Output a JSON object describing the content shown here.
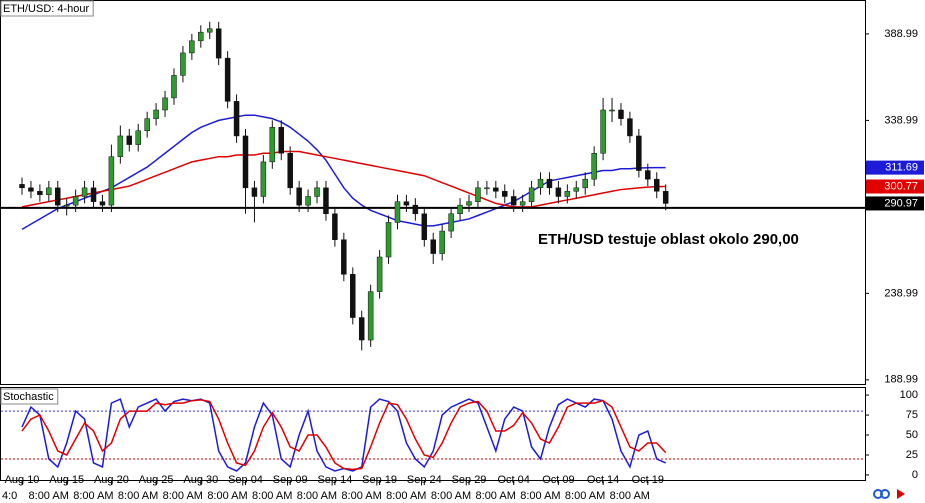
{
  "chart_data": [
    {
      "type": "candlestick",
      "title": "ETH/USD: 4-hour",
      "annotation": "ETH/USD testuje oblast okolo 290,00",
      "up_color": "#2f9a2f",
      "down_color": "#111111",
      "open": [
        302,
        300,
        298,
        296,
        300,
        290,
        290,
        295,
        300,
        292,
        290,
        318,
        330,
        325,
        333,
        340,
        345,
        352,
        365,
        378,
        385,
        390,
        392,
        375,
        350,
        330,
        300,
        295,
        315,
        335,
        320,
        300,
        290,
        295,
        300,
        285,
        270,
        250,
        225,
        212,
        240,
        260,
        280,
        292,
        290,
        285,
        270,
        262,
        275,
        285,
        290,
        292,
        300,
        300,
        298,
        295,
        290,
        292,
        300,
        305,
        300,
        295,
        298,
        300,
        305,
        320,
        345,
        345,
        340,
        330,
        310,
        305,
        298
      ],
      "high": [
        306,
        304,
        302,
        304,
        304,
        294,
        299,
        304,
        304,
        296,
        325,
        336,
        334,
        337,
        344,
        349,
        356,
        369,
        382,
        389,
        394,
        396,
        396,
        379,
        354,
        334,
        304,
        319,
        339,
        339,
        324,
        304,
        299,
        304,
        304,
        289,
        274,
        254,
        229,
        244,
        264,
        284,
        296,
        296,
        294,
        289,
        274,
        279,
        289,
        294,
        296,
        304,
        304,
        304,
        302,
        299,
        296,
        304,
        309,
        309,
        304,
        302,
        304,
        309,
        324,
        352,
        352,
        349,
        344,
        334,
        314,
        309,
        302
      ],
      "low": [
        296,
        294,
        292,
        292,
        286,
        284,
        286,
        291,
        288,
        286,
        286,
        314,
        321,
        321,
        329,
        336,
        341,
        348,
        361,
        374,
        381,
        386,
        371,
        346,
        326,
        285,
        280,
        291,
        311,
        316,
        296,
        286,
        286,
        291,
        281,
        266,
        246,
        221,
        206,
        208,
        236,
        256,
        276,
        286,
        281,
        266,
        256,
        258,
        271,
        281,
        286,
        288,
        296,
        294,
        291,
        286,
        286,
        288,
        296,
        296,
        291,
        291,
        294,
        296,
        301,
        316,
        338,
        336,
        326,
        306,
        301,
        294,
        287
      ],
      "close": [
        300,
        298,
        296,
        300,
        290,
        290,
        295,
        300,
        292,
        290,
        318,
        330,
        325,
        333,
        340,
        345,
        352,
        365,
        378,
        385,
        390,
        392,
        375,
        350,
        330,
        300,
        295,
        315,
        335,
        320,
        300,
        290,
        295,
        300,
        285,
        270,
        250,
        225,
        212,
        240,
        260,
        280,
        292,
        290,
        285,
        270,
        262,
        275,
        285,
        290,
        292,
        300,
        300,
        298,
        295,
        290,
        292,
        300,
        305,
        300,
        295,
        298,
        300,
        305,
        320,
        345,
        345,
        340,
        330,
        310,
        305,
        298,
        290.97
      ],
      "last_color": "#000000",
      "series": [
        {
          "color": "#1c1cd8",
          "values": [
            276,
            279,
            282,
            285,
            288,
            290,
            292,
            294,
            296,
            298,
            300,
            303,
            306,
            309,
            312,
            316,
            320,
            324,
            328,
            332,
            335,
            337,
            339,
            340,
            341,
            342,
            342,
            341,
            340,
            338,
            335,
            331,
            327,
            322,
            316,
            308,
            300,
            294,
            290,
            287,
            285,
            283,
            281,
            280,
            279,
            278,
            278,
            279,
            280,
            281,
            282,
            284,
            286,
            288,
            290,
            292,
            295,
            298,
            301,
            304,
            305,
            306,
            307,
            308,
            309,
            310,
            310,
            311,
            311,
            311.5,
            311.6,
            311.69,
            311.69
          ]
        },
        {
          "color": "#e00000",
          "values": [
            289,
            290,
            291,
            292,
            293,
            294,
            295,
            296,
            297,
            298,
            299,
            300,
            301,
            303,
            305,
            307,
            309,
            311,
            313,
            315,
            316,
            317,
            318,
            318,
            319,
            319,
            319,
            320,
            320,
            321,
            321,
            321,
            320,
            319,
            318,
            317,
            316,
            315,
            314,
            313,
            312,
            311,
            310,
            309,
            308,
            307,
            305,
            303,
            301,
            299,
            297,
            295,
            293,
            291,
            290,
            289,
            289,
            289,
            290,
            291,
            292,
            293,
            294,
            295,
            296,
            297,
            298,
            299,
            299.5,
            300,
            300.4,
            300.7,
            300.77
          ]
        }
      ],
      "hline": {
        "value": 288.4,
        "color": "#000000"
      },
      "ylim": [
        186,
        408.6
      ],
      "yticks": [
        388.99,
        338.99,
        238.99,
        188.99
      ]
    },
    {
      "type": "line",
      "title": "Stochastic",
      "categories": [
        "Aug 10",
        null,
        null,
        null,
        null,
        "Aug 15",
        null,
        null,
        null,
        null,
        "Aug 20",
        null,
        null,
        null,
        null,
        "Aug 25",
        null,
        null,
        null,
        null,
        "Aug 30",
        null,
        null,
        null,
        null,
        "Sep 04",
        null,
        null,
        null,
        null,
        "Sep 09",
        null,
        null,
        null,
        null,
        "Sep 14",
        null,
        null,
        null,
        null,
        "Sep 19",
        null,
        null,
        null,
        null,
        "Sep 24",
        null,
        null,
        null,
        null,
        "Sep 29",
        null,
        null,
        null,
        null,
        "Oct 04",
        null,
        null,
        null,
        null,
        "Oct 09",
        null,
        null,
        null,
        null,
        "Oct 14",
        null,
        null,
        null,
        null,
        "Oct 19",
        null,
        null
      ],
      "time_labels": [
        "4:0",
        "8:00 AM",
        "8:00 AM",
        "8:00 AM",
        "8:00 AM",
        "8:00 AM",
        "8:00 AM",
        "8:00 AM",
        "8:00 AM",
        "8:00 AM",
        "8:00 AM",
        "8:00 AM",
        "8:00 AM",
        "8:00 AM",
        "8:00 AM"
      ],
      "series": [
        {
          "color": "#1c1cd8",
          "values": [
            60,
            85,
            75,
            20,
            10,
            40,
            80,
            70,
            15,
            10,
            90,
            95,
            60,
            85,
            90,
            95,
            80,
            92,
            95,
            93,
            95,
            90,
            30,
            10,
            5,
            15,
            60,
            90,
            75,
            20,
            10,
            50,
            80,
            30,
            10,
            5,
            8,
            5,
            10,
            85,
            95,
            92,
            80,
            40,
            20,
            10,
            30,
            75,
            85,
            90,
            95,
            90,
            60,
            30,
            70,
            85,
            80,
            35,
            20,
            60,
            88,
            95,
            90,
            85,
            95,
            93,
            70,
            30,
            10,
            50,
            55,
            20,
            15
          ]
        },
        {
          "color": "#e00000",
          "values": [
            55,
            70,
            75,
            55,
            30,
            25,
            45,
            65,
            55,
            30,
            40,
            70,
            80,
            80,
            80,
            90,
            88,
            90,
            90,
            93,
            94,
            92,
            70,
            40,
            15,
            12,
            30,
            60,
            78,
            60,
            35,
            30,
            50,
            50,
            35,
            15,
            8,
            7,
            8,
            35,
            65,
            90,
            88,
            70,
            45,
            25,
            22,
            40,
            65,
            85,
            90,
            92,
            80,
            55,
            55,
            62,
            78,
            65,
            45,
            40,
            60,
            85,
            90,
            90,
            90,
            93,
            85,
            60,
            35,
            30,
            40,
            40,
            28
          ]
        }
      ],
      "levels": [
        {
          "value": 80,
          "color": "#3333cc"
        },
        {
          "value": 20,
          "color": "#cc0000"
        }
      ],
      "ylim": [
        -7.6,
        108.9
      ],
      "yticks": [
        100,
        75,
        50,
        25,
        0
      ]
    }
  ]
}
